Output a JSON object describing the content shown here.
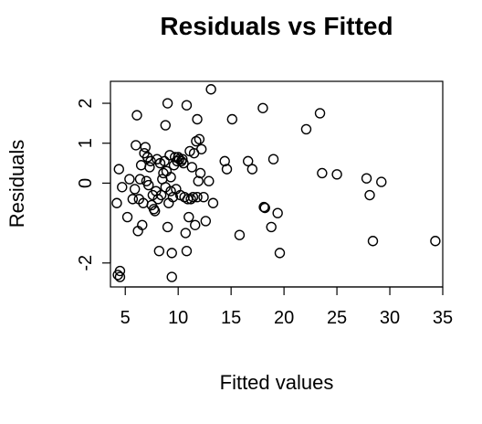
{
  "chart_data": {
    "type": "scatter",
    "title": "Residuals vs Fitted",
    "xlabel": "Fitted values",
    "ylabel": "Residuals",
    "xlim": [
      3.6,
      35.0
    ],
    "ylim": [
      -2.6,
      2.55
    ],
    "x_ticks": [
      5,
      10,
      15,
      20,
      25,
      30,
      35
    ],
    "x_tick_labels": [
      "5",
      "10",
      "15",
      "20",
      "25",
      "30",
      "35"
    ],
    "y_ticks": [
      -2,
      0,
      1,
      2
    ],
    "y_tick_labels": [
      "-2",
      "0",
      "1",
      "2"
    ],
    "grid": false,
    "points": [
      {
        "x": 4.3,
        "y": -2.3
      },
      {
        "x": 4.5,
        "y": -2.2
      },
      {
        "x": 4.5,
        "y": -2.35
      },
      {
        "x": 4.2,
        "y": -0.5
      },
      {
        "x": 4.4,
        "y": 0.35
      },
      {
        "x": 4.7,
        "y": -0.1
      },
      {
        "x": 5.2,
        "y": -0.85
      },
      {
        "x": 5.4,
        "y": 0.1
      },
      {
        "x": 5.7,
        "y": -0.4
      },
      {
        "x": 5.9,
        "y": -0.15
      },
      {
        "x": 6.0,
        "y": 0.95
      },
      {
        "x": 6.1,
        "y": 1.7
      },
      {
        "x": 6.2,
        "y": -1.2
      },
      {
        "x": 6.3,
        "y": -0.4
      },
      {
        "x": 6.4,
        "y": 0.1
      },
      {
        "x": 6.5,
        "y": 0.45
      },
      {
        "x": 6.6,
        "y": -1.05
      },
      {
        "x": 6.7,
        "y": -0.5
      },
      {
        "x": 6.8,
        "y": 0.75
      },
      {
        "x": 6.9,
        "y": 0.9
      },
      {
        "x": 7.0,
        "y": 0.05
      },
      {
        "x": 7.1,
        "y": 0.65
      },
      {
        "x": 7.2,
        "y": -0.05
      },
      {
        "x": 7.3,
        "y": 0.4
      },
      {
        "x": 7.4,
        "y": 0.55
      },
      {
        "x": 7.5,
        "y": -0.55
      },
      {
        "x": 7.6,
        "y": -0.3
      },
      {
        "x": 7.7,
        "y": -0.65
      },
      {
        "x": 7.8,
        "y": -0.7
      },
      {
        "x": 7.9,
        "y": -0.2
      },
      {
        "x": 8.0,
        "y": 0.6
      },
      {
        "x": 8.1,
        "y": -0.4
      },
      {
        "x": 8.2,
        "y": -1.7
      },
      {
        "x": 8.3,
        "y": 0.5
      },
      {
        "x": 8.4,
        "y": -0.3
      },
      {
        "x": 8.5,
        "y": 0.1
      },
      {
        "x": 8.6,
        "y": 0.25
      },
      {
        "x": 8.7,
        "y": 0.55
      },
      {
        "x": 8.8,
        "y": 1.45
      },
      {
        "x": 8.8,
        "y": -0.1
      },
      {
        "x": 8.9,
        "y": 0.3
      },
      {
        "x": 9.0,
        "y": 2.0
      },
      {
        "x": 9.0,
        "y": -1.1
      },
      {
        "x": 9.1,
        "y": -0.5
      },
      {
        "x": 9.2,
        "y": 0.7
      },
      {
        "x": 9.3,
        "y": -0.2
      },
      {
        "x": 9.3,
        "y": 0.15
      },
      {
        "x": 9.4,
        "y": -1.75
      },
      {
        "x": 9.4,
        "y": -2.35
      },
      {
        "x": 9.5,
        "y": -0.35
      },
      {
        "x": 9.6,
        "y": 0.45
      },
      {
        "x": 9.7,
        "y": 0.65
      },
      {
        "x": 9.8,
        "y": -0.15
      },
      {
        "x": 9.9,
        "y": 0.55
      },
      {
        "x": 10.0,
        "y": 0.65
      },
      {
        "x": 10.1,
        "y": 0.6
      },
      {
        "x": 10.2,
        "y": -0.3
      },
      {
        "x": 10.3,
        "y": 0.55
      },
      {
        "x": 10.4,
        "y": 0.6
      },
      {
        "x": 10.5,
        "y": 0.5
      },
      {
        "x": 10.6,
        "y": -0.35
      },
      {
        "x": 10.7,
        "y": -1.25
      },
      {
        "x": 10.8,
        "y": 1.95
      },
      {
        "x": 10.8,
        "y": -1.7
      },
      {
        "x": 10.9,
        "y": -0.4
      },
      {
        "x": 11.0,
        "y": -0.85
      },
      {
        "x": 11.1,
        "y": 0.8
      },
      {
        "x": 11.2,
        "y": -0.4
      },
      {
        "x": 11.3,
        "y": 0.4
      },
      {
        "x": 11.4,
        "y": -0.35
      },
      {
        "x": 11.5,
        "y": 0.75
      },
      {
        "x": 11.6,
        "y": -1.05
      },
      {
        "x": 11.7,
        "y": 1.05
      },
      {
        "x": 11.8,
        "y": 1.6
      },
      {
        "x": 11.8,
        "y": -0.35
      },
      {
        "x": 11.9,
        "y": 0.05
      },
      {
        "x": 12.0,
        "y": 1.1
      },
      {
        "x": 12.1,
        "y": 0.25
      },
      {
        "x": 12.2,
        "y": 0.85
      },
      {
        "x": 12.4,
        "y": -0.35
      },
      {
        "x": 12.6,
        "y": -0.95
      },
      {
        "x": 12.9,
        "y": 0.05
      },
      {
        "x": 13.1,
        "y": 2.35
      },
      {
        "x": 13.3,
        "y": -0.5
      },
      {
        "x": 14.4,
        "y": 0.55
      },
      {
        "x": 14.6,
        "y": 0.35
      },
      {
        "x": 15.1,
        "y": 1.6
      },
      {
        "x": 15.8,
        "y": -1.3
      },
      {
        "x": 16.6,
        "y": 0.55
      },
      {
        "x": 17.0,
        "y": 0.35
      },
      {
        "x": 18.0,
        "y": 1.88
      },
      {
        "x": 18.1,
        "y": -0.6
      },
      {
        "x": 18.2,
        "y": -0.62
      },
      {
        "x": 18.8,
        "y": -1.1
      },
      {
        "x": 19.0,
        "y": 0.6
      },
      {
        "x": 19.4,
        "y": -0.75
      },
      {
        "x": 19.6,
        "y": -1.75
      },
      {
        "x": 22.1,
        "y": 1.35
      },
      {
        "x": 23.4,
        "y": 1.75
      },
      {
        "x": 23.6,
        "y": 0.25
      },
      {
        "x": 25.0,
        "y": 0.22
      },
      {
        "x": 27.8,
        "y": 0.12
      },
      {
        "x": 28.1,
        "y": -0.3
      },
      {
        "x": 28.4,
        "y": -1.45
      },
      {
        "x": 29.2,
        "y": 0.03
      },
      {
        "x": 34.3,
        "y": -1.45
      }
    ]
  }
}
